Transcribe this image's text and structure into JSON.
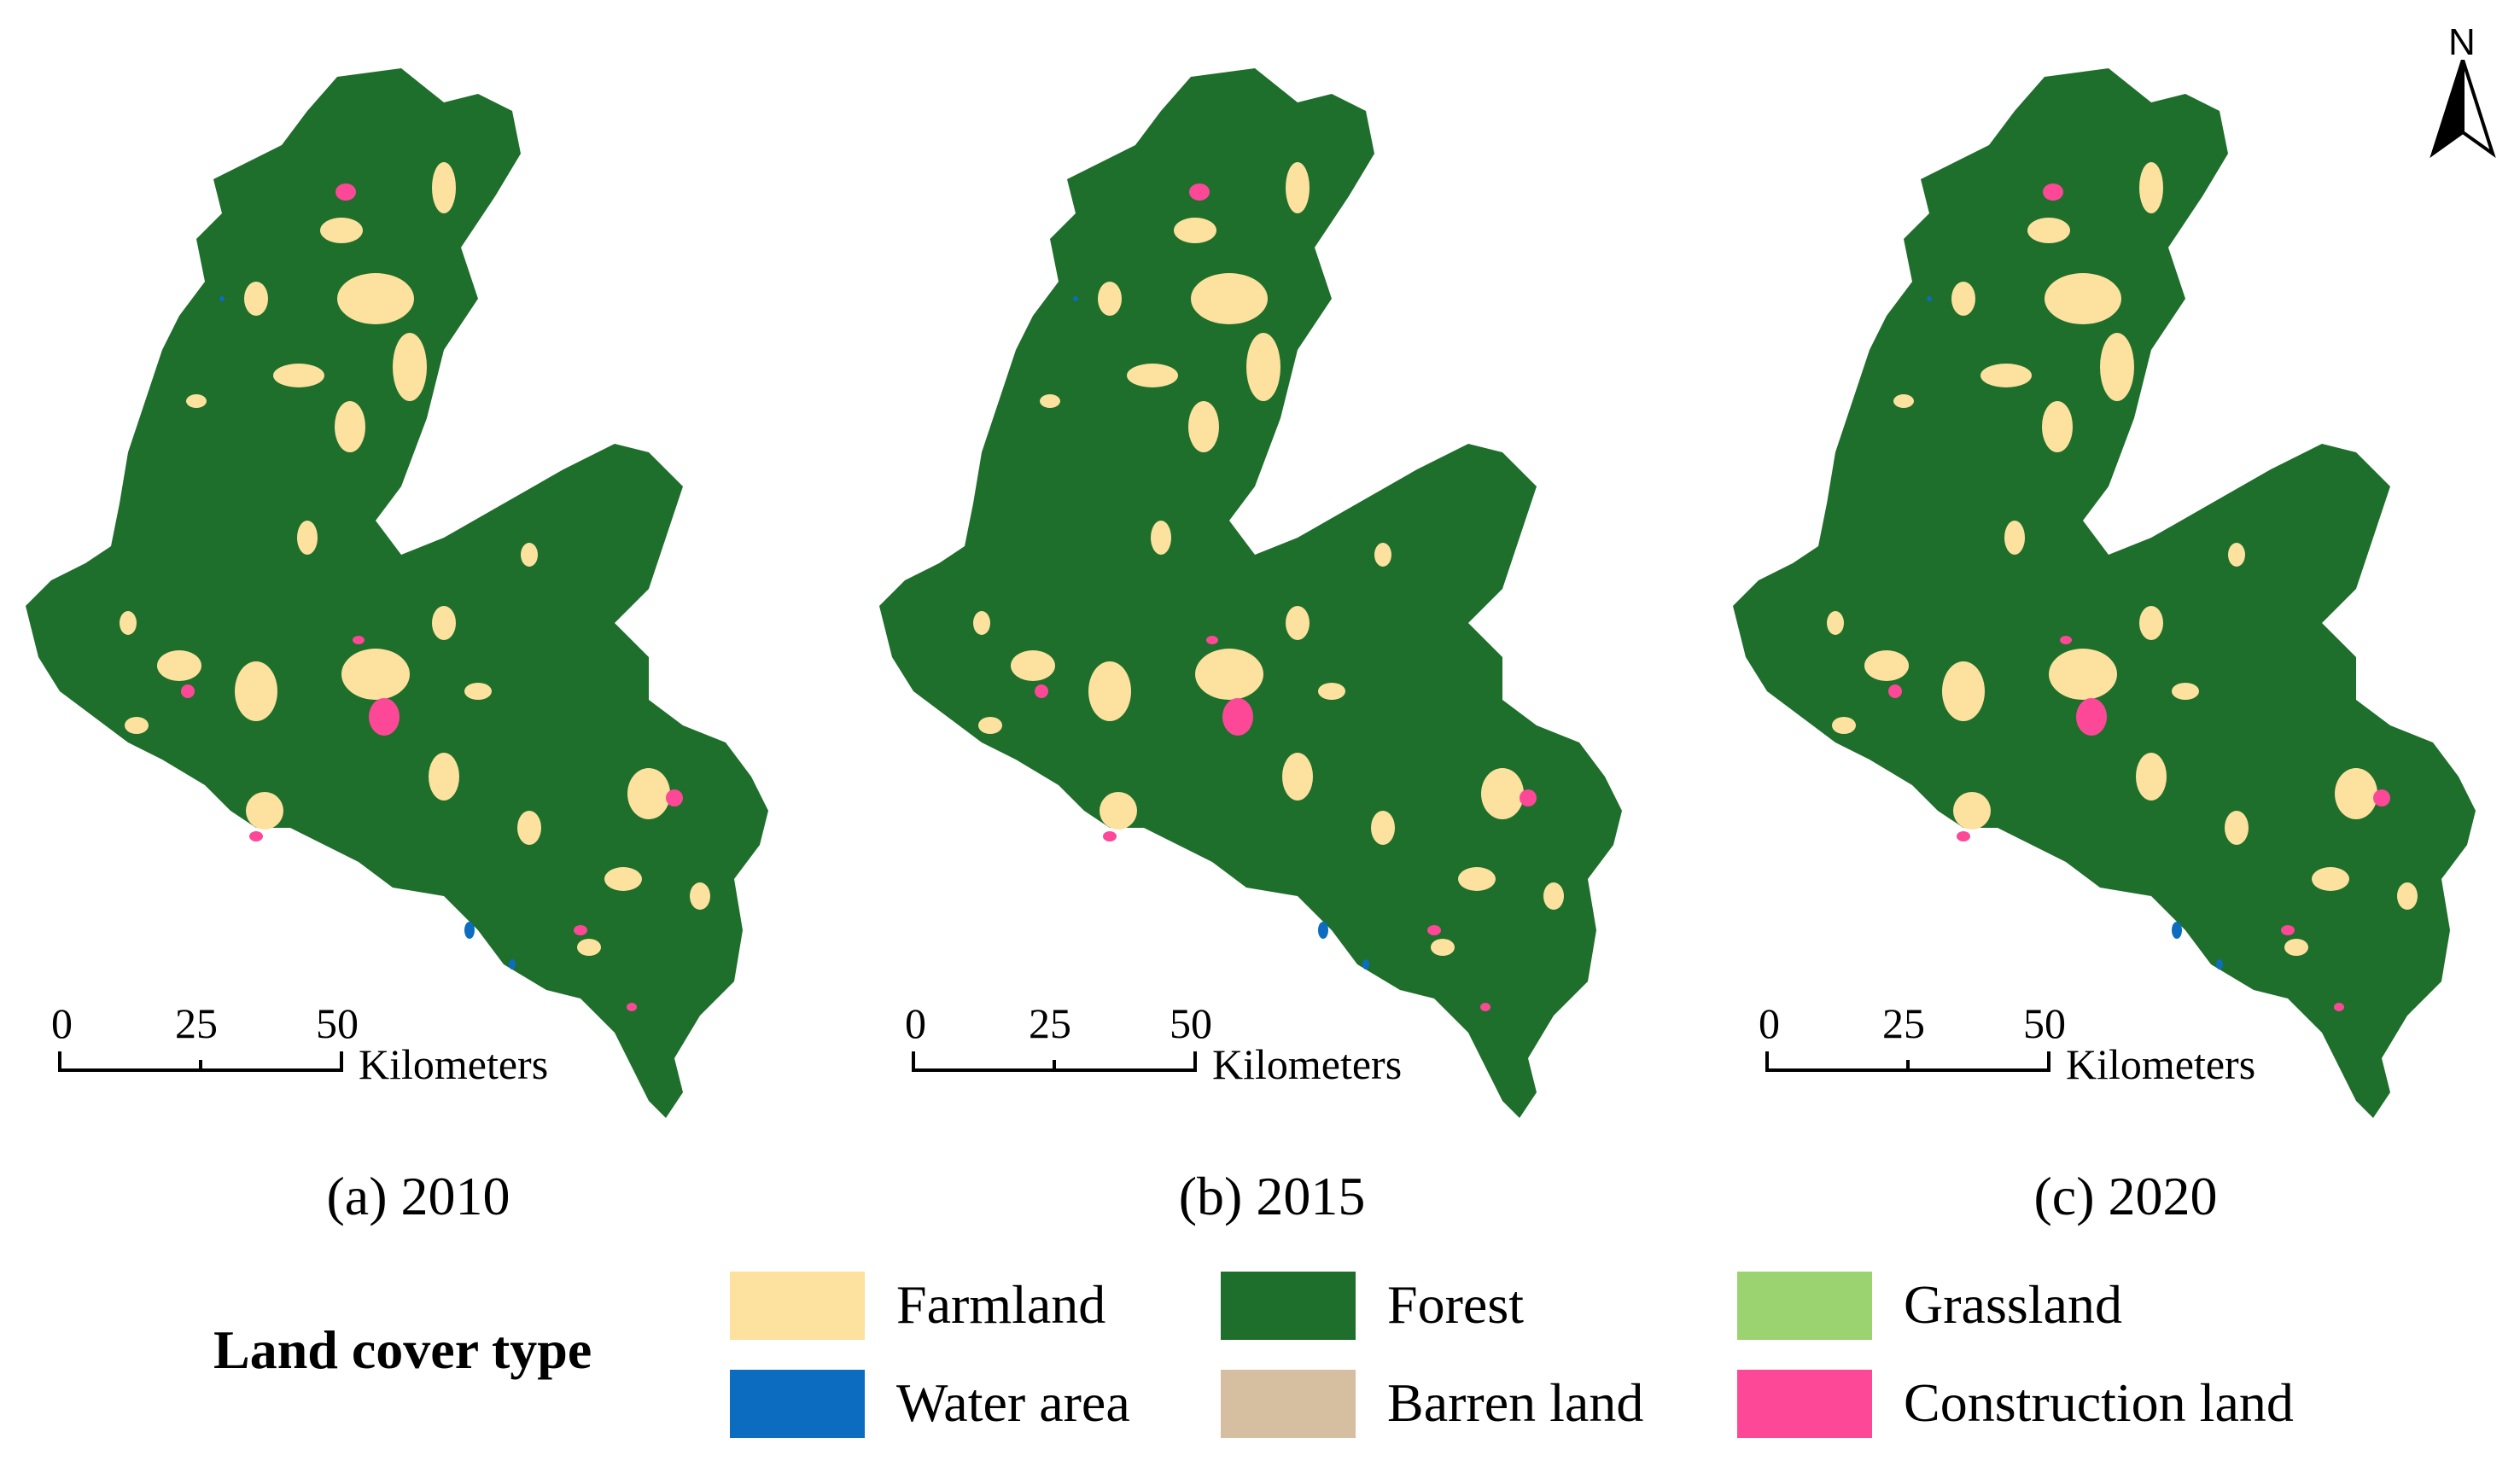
{
  "panels": [
    {
      "id": "a",
      "caption": "(a) 2010"
    },
    {
      "id": "b",
      "caption": "(b) 2015"
    },
    {
      "id": "c",
      "caption": "(c) 2020"
    }
  ],
  "scalebar": {
    "ticks": [
      "0",
      "25",
      "50"
    ],
    "unit": "Kilometers"
  },
  "north_arrow": {
    "label": "N"
  },
  "legend": {
    "title": "Land cover type",
    "items": [
      {
        "label": "Farmland",
        "color": "#fde19e"
      },
      {
        "label": "Forest",
        "color": "#1e6e2c"
      },
      {
        "label": "Grassland",
        "color": "#9ad36f"
      },
      {
        "label": "Water area",
        "color": "#0c6cc0"
      },
      {
        "label": "Barren land",
        "color": "#d6bea0"
      },
      {
        "label": "Construction land",
        "color": "#fd4897"
      }
    ]
  },
  "colors": {
    "forest": "#1e6e2c",
    "farmland": "#fde19e",
    "construction": "#fd4897",
    "water": "#0c6cc0"
  }
}
